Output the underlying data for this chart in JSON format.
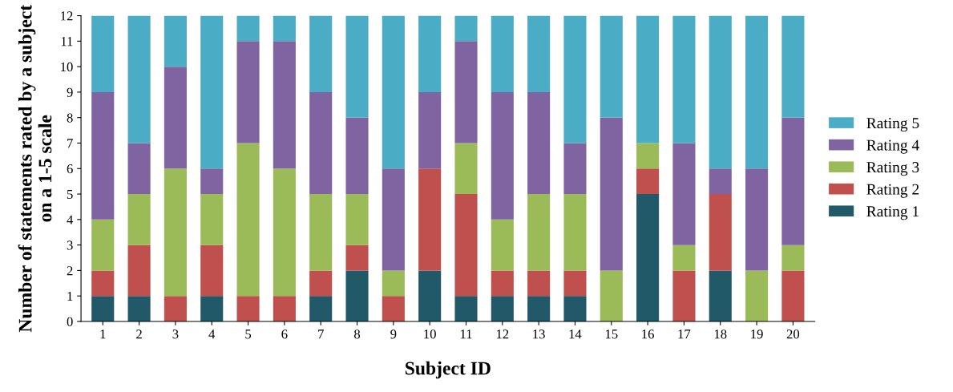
{
  "chart_data": {
    "type": "bar",
    "stacked": true,
    "xlabel": "Subject ID",
    "ylabel": "Number of statements rated by a subject on a 1-5 scale",
    "categories": [
      "1",
      "2",
      "3",
      "4",
      "5",
      "6",
      "7",
      "8",
      "9",
      "10",
      "11",
      "12",
      "13",
      "14",
      "15",
      "16",
      "17",
      "18",
      "19",
      "20"
    ],
    "series": [
      {
        "name": "Rating 1",
        "color": "#215968",
        "values": [
          1,
          1,
          0,
          1,
          0,
          0,
          1,
          2,
          0,
          2,
          1,
          1,
          1,
          1,
          0,
          5,
          0,
          2,
          0,
          0
        ]
      },
      {
        "name": "Rating 2",
        "color": "#c0504d",
        "values": [
          1,
          2,
          1,
          2,
          1,
          1,
          1,
          1,
          1,
          4,
          4,
          1,
          1,
          1,
          0,
          1,
          2,
          3,
          0,
          2
        ]
      },
      {
        "name": "Rating 3",
        "color": "#9bbb59",
        "values": [
          2,
          2,
          5,
          2,
          6,
          5,
          3,
          2,
          1,
          0,
          2,
          2,
          3,
          3,
          2,
          1,
          1,
          0,
          2,
          1
        ]
      },
      {
        "name": "Rating 4",
        "color": "#8064a2",
        "values": [
          5,
          2,
          4,
          1,
          4,
          5,
          4,
          3,
          4,
          3,
          4,
          5,
          4,
          2,
          6,
          0,
          4,
          1,
          4,
          5
        ]
      },
      {
        "name": "Rating 5",
        "color": "#4bacc6",
        "values": [
          3,
          5,
          2,
          6,
          1,
          1,
          3,
          4,
          6,
          3,
          1,
          3,
          3,
          5,
          4,
          5,
          5,
          6,
          6,
          4
        ]
      }
    ],
    "ylim": [
      0,
      12
    ],
    "yticks": [
      0,
      1,
      2,
      3,
      4,
      5,
      6,
      7,
      8,
      9,
      10,
      11,
      12
    ],
    "grid": false,
    "legend": "right"
  }
}
